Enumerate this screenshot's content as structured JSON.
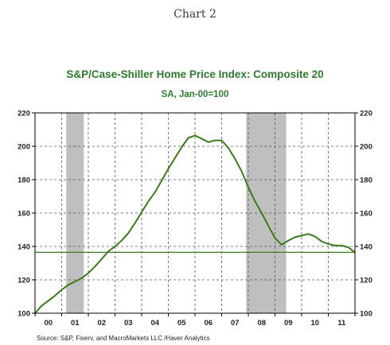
{
  "page": {
    "heading": "Chart 2"
  },
  "chart_data": {
    "type": "line",
    "title": "S&P/Case-Shiller Home Price Index: Composite 20",
    "subtitle": "SA, Jan-00=100",
    "source": "Source:  S&P, Fiserv, and MacroMarkets LLC /Haver Analytics",
    "xlim": [
      2000.0,
      2012.0
    ],
    "ylim": [
      100,
      220
    ],
    "yticks": [
      100,
      120,
      140,
      160,
      180,
      200,
      220
    ],
    "x_tick_labels": [
      "00",
      "01",
      "02",
      "03",
      "04",
      "05",
      "06",
      "07",
      "08",
      "09",
      "10",
      "11"
    ],
    "grid": true,
    "reference_line": 136.5,
    "recessions": [
      [
        2001.17,
        2001.83
      ],
      [
        2007.92,
        2009.42
      ]
    ],
    "series": [
      {
        "color": "#3d7a1e",
        "x": [
          2000.0,
          2000.25,
          2000.5,
          2000.75,
          2001.0,
          2001.25,
          2001.5,
          2001.75,
          2002.0,
          2002.25,
          2002.5,
          2002.75,
          2003.0,
          2003.25,
          2003.5,
          2003.75,
          2004.0,
          2004.25,
          2004.5,
          2004.75,
          2005.0,
          2005.25,
          2005.5,
          2005.75,
          2006.0,
          2006.25,
          2006.5,
          2006.75,
          2007.0,
          2007.25,
          2007.5,
          2007.75,
          2008.0,
          2008.25,
          2008.5,
          2008.75,
          2009.0,
          2009.25,
          2009.5,
          2009.75,
          2010.0,
          2010.25,
          2010.5,
          2010.75,
          2011.0,
          2011.25,
          2011.5,
          2011.75,
          2012.0
        ],
        "values": [
          100.0,
          104.5,
          107.5,
          110.5,
          114.0,
          117.0,
          119.0,
          121.0,
          124.0,
          128.0,
          132.5,
          137.0,
          140.0,
          143.5,
          148.0,
          154.0,
          160.5,
          167.0,
          172.5,
          179.5,
          186.5,
          193.0,
          199.5,
          205.0,
          206.5,
          204.5,
          202.5,
          203.5,
          203.5,
          199.0,
          192.5,
          185.0,
          175.5,
          167.0,
          160.0,
          152.5,
          145.0,
          141.0,
          143.5,
          145.5,
          146.5,
          147.5,
          146.0,
          143.0,
          141.5,
          140.5,
          140.5,
          139.5,
          136.5
        ]
      }
    ]
  }
}
